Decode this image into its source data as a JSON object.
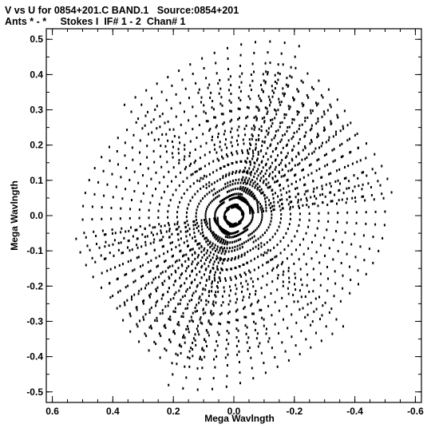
{
  "header": {
    "line1": "V vs U for 0854+201.C BAND.1   Source:0854+201",
    "line2": "Ants * - *     Stokes I  IF# 1 - 2  Chan# 1"
  },
  "chart_data": {
    "type": "scatter",
    "xlabel": "Mega Wavlngth",
    "ylabel": "Mega Wavlngth",
    "xlim": [
      0.62,
      -0.62
    ],
    "ylim": [
      -0.53,
      0.53
    ],
    "x_ticks": [
      0.6,
      0.4,
      0.2,
      0.0,
      -0.2,
      -0.4,
      -0.6
    ],
    "x_tick_labels": [
      "0.6",
      "0.4",
      "0.2",
      "0.0",
      "-0.2",
      "-0.4",
      "-0.6"
    ],
    "y_ticks": [
      0.5,
      0.4,
      0.3,
      0.2,
      0.1,
      0.0,
      -0.1,
      -0.2,
      -0.3,
      -0.4,
      -0.5
    ],
    "y_tick_labels": [
      "0.5",
      "0.4",
      "0.3",
      "0.2",
      "0.1",
      "0.0",
      "-0.1",
      "-0.2",
      "-0.3",
      "-0.4",
      "-0.5"
    ],
    "grid": false,
    "marker_color": "#000000",
    "uv_tracks": {
      "description_note": "",
      "baseline_arms": [
        {
          "pa_deg": 78,
          "max_radius": 0.58
        },
        {
          "pa_deg": 18,
          "max_radius": 0.5
        },
        {
          "pa_deg": -42,
          "max_radius": 0.53
        },
        {
          "pa_deg": 108,
          "max_radius": 0.48
        },
        {
          "pa_deg": 138,
          "max_radius": 0.51
        }
      ],
      "radial_steps": 16,
      "hour_angle_samples": 15,
      "arc_half_width_deg": 34
    }
  }
}
